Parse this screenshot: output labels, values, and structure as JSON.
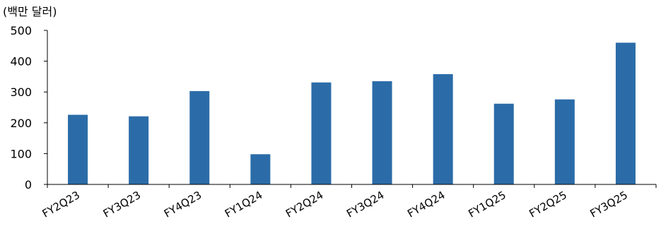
{
  "chart_data": {
    "type": "bar",
    "unit_label": "(백만 달러)",
    "categories": [
      "FY2Q23",
      "FY3Q23",
      "FY4Q23",
      "FY1Q24",
      "FY2Q24",
      "FY3Q24",
      "FY4Q24",
      "FY1Q25",
      "FY2Q25",
      "FY3Q25"
    ],
    "values": [
      226,
      221,
      303,
      98,
      331,
      335,
      358,
      262,
      276,
      460
    ],
    "ylim": [
      0,
      500
    ],
    "yticks": [
      0,
      100,
      200,
      300,
      400,
      500
    ],
    "grid": false,
    "legend": "none",
    "bar_color": "#2b6ca8"
  }
}
